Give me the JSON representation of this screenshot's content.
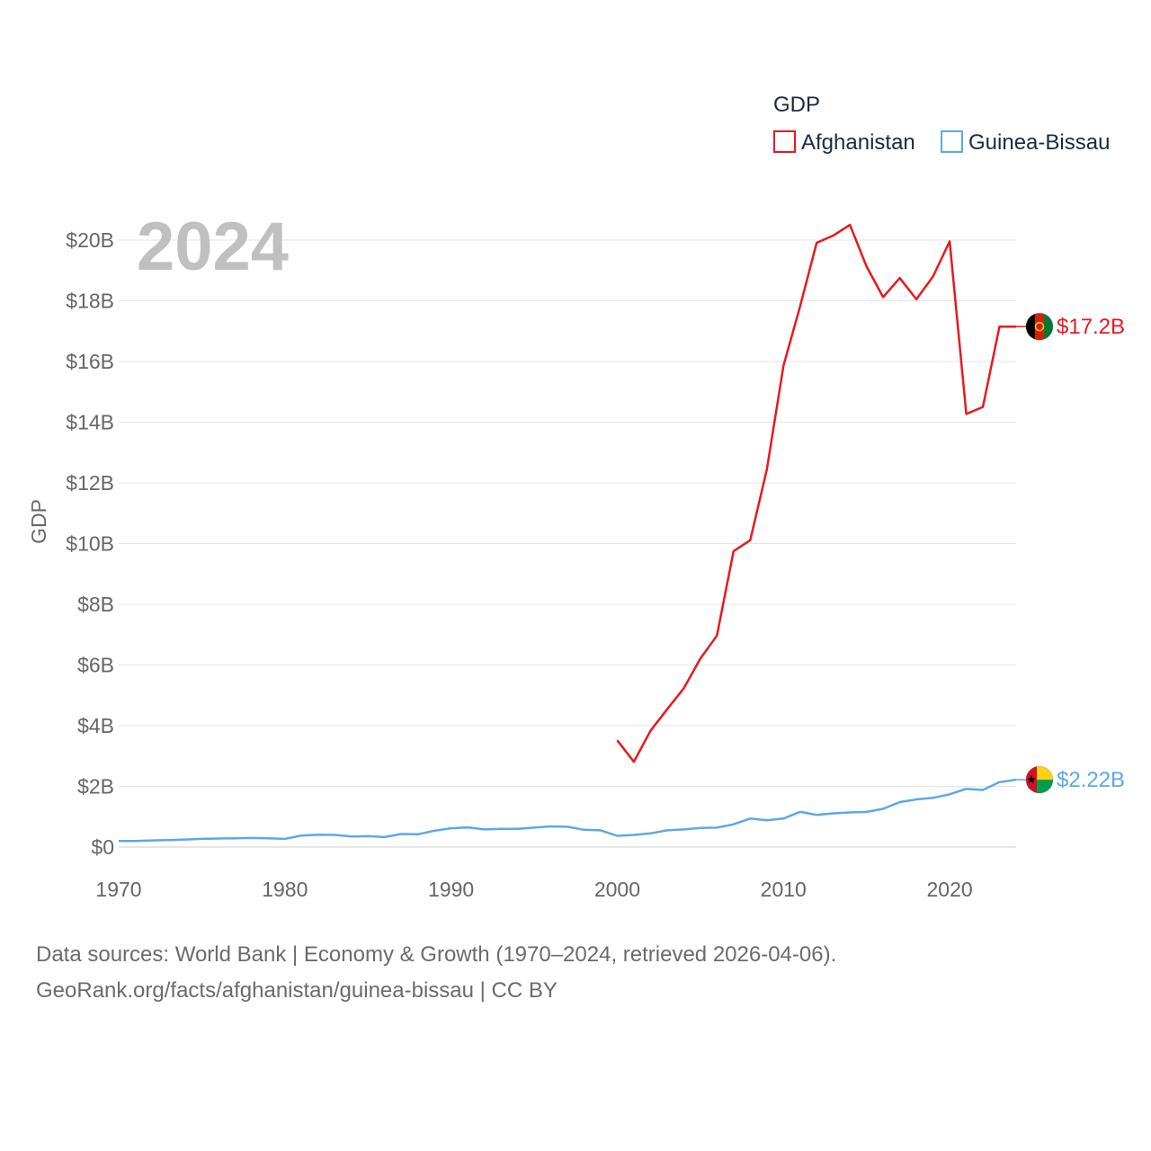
{
  "chart_data": {
    "type": "line",
    "title": "GDP",
    "xlabel": "",
    "ylabel": "GDP",
    "year_label": "2024",
    "xlim": [
      1970,
      2024
    ],
    "ylim": [
      0,
      21000000000
    ],
    "x_ticks": [
      1970,
      1980,
      1990,
      2000,
      2010,
      2020
    ],
    "x_tick_labels": [
      "1970",
      "1980",
      "1990",
      "2000",
      "2010",
      "2020"
    ],
    "y_ticks": [
      0,
      2000000000,
      4000000000,
      6000000000,
      8000000000,
      10000000000,
      12000000000,
      14000000000,
      16000000000,
      18000000000,
      20000000000
    ],
    "y_tick_labels": [
      "$0",
      "$2B",
      "$4B",
      "$6B",
      "$8B",
      "$10B",
      "$12B",
      "$14B",
      "$16B",
      "$18B",
      "$20B"
    ],
    "grid": true,
    "legend_position": "top-right",
    "series": [
      {
        "name": "Afghanistan",
        "color": "#e8191f",
        "end_label": "$17.2B",
        "x": [
          2000,
          2001,
          2002,
          2003,
          2004,
          2005,
          2006,
          2007,
          2008,
          2009,
          2010,
          2011,
          2012,
          2013,
          2014,
          2015,
          2016,
          2017,
          2018,
          2019,
          2020,
          2021,
          2022,
          2023,
          2024
        ],
        "values": [
          3520000000,
          2810000000,
          3830000000,
          4540000000,
          5230000000,
          6210000000,
          6970000000,
          9750000000,
          10110000000,
          12440000000,
          15860000000,
          17810000000,
          19910000000,
          20150000000,
          20500000000,
          19130000000,
          18120000000,
          18750000000,
          18050000000,
          18800000000,
          19960000000,
          14270000000,
          14500000000,
          17150000000,
          17150000000
        ]
      },
      {
        "name": "Guinea-Bissau",
        "color": "#5ca8e8",
        "end_label": "$2.22B",
        "x": [
          1970,
          1971,
          1972,
          1973,
          1974,
          1975,
          1976,
          1977,
          1978,
          1979,
          1980,
          1981,
          1982,
          1983,
          1984,
          1985,
          1986,
          1987,
          1988,
          1989,
          1990,
          1991,
          1992,
          1993,
          1994,
          1995,
          1996,
          1997,
          1998,
          1999,
          2000,
          2001,
          2002,
          2003,
          2004,
          2005,
          2006,
          2007,
          2008,
          2009,
          2010,
          2011,
          2012,
          2013,
          2014,
          2015,
          2016,
          2017,
          2018,
          2019,
          2020,
          2021,
          2022,
          2023,
          2024
        ],
        "values": [
          200000000,
          200000000,
          220000000,
          230000000,
          250000000,
          270000000,
          280000000,
          290000000,
          300000000,
          290000000,
          270000000,
          380000000,
          410000000,
          400000000,
          350000000,
          360000000,
          330000000,
          430000000,
          420000000,
          540000000,
          620000000,
          650000000,
          580000000,
          600000000,
          600000000,
          640000000,
          680000000,
          670000000,
          570000000,
          550000000,
          370000000,
          400000000,
          450000000,
          550000000,
          580000000,
          630000000,
          640000000,
          750000000,
          940000000,
          880000000,
          940000000,
          1160000000,
          1060000000,
          1110000000,
          1140000000,
          1160000000,
          1260000000,
          1480000000,
          1570000000,
          1620000000,
          1740000000,
          1920000000,
          1880000000,
          2140000000,
          2220000000
        ]
      }
    ]
  },
  "source": {
    "line1": "Data sources: World Bank | Economy & Growth (1970–2024, retrieved 2026-04-06).",
    "line2": "GeoRank.org/facts/afghanistan/guinea-bissau | CC BY"
  },
  "flags": {
    "afghanistan": {
      "icon": "afghanistan-flag-icon",
      "colors": [
        "#000000",
        "#d32011",
        "#007a36"
      ]
    },
    "guinea_bissau": {
      "icon": "guinea-bissau-flag-icon",
      "colors": [
        "#ce1126",
        "#fcd116",
        "#009e49"
      ]
    }
  }
}
